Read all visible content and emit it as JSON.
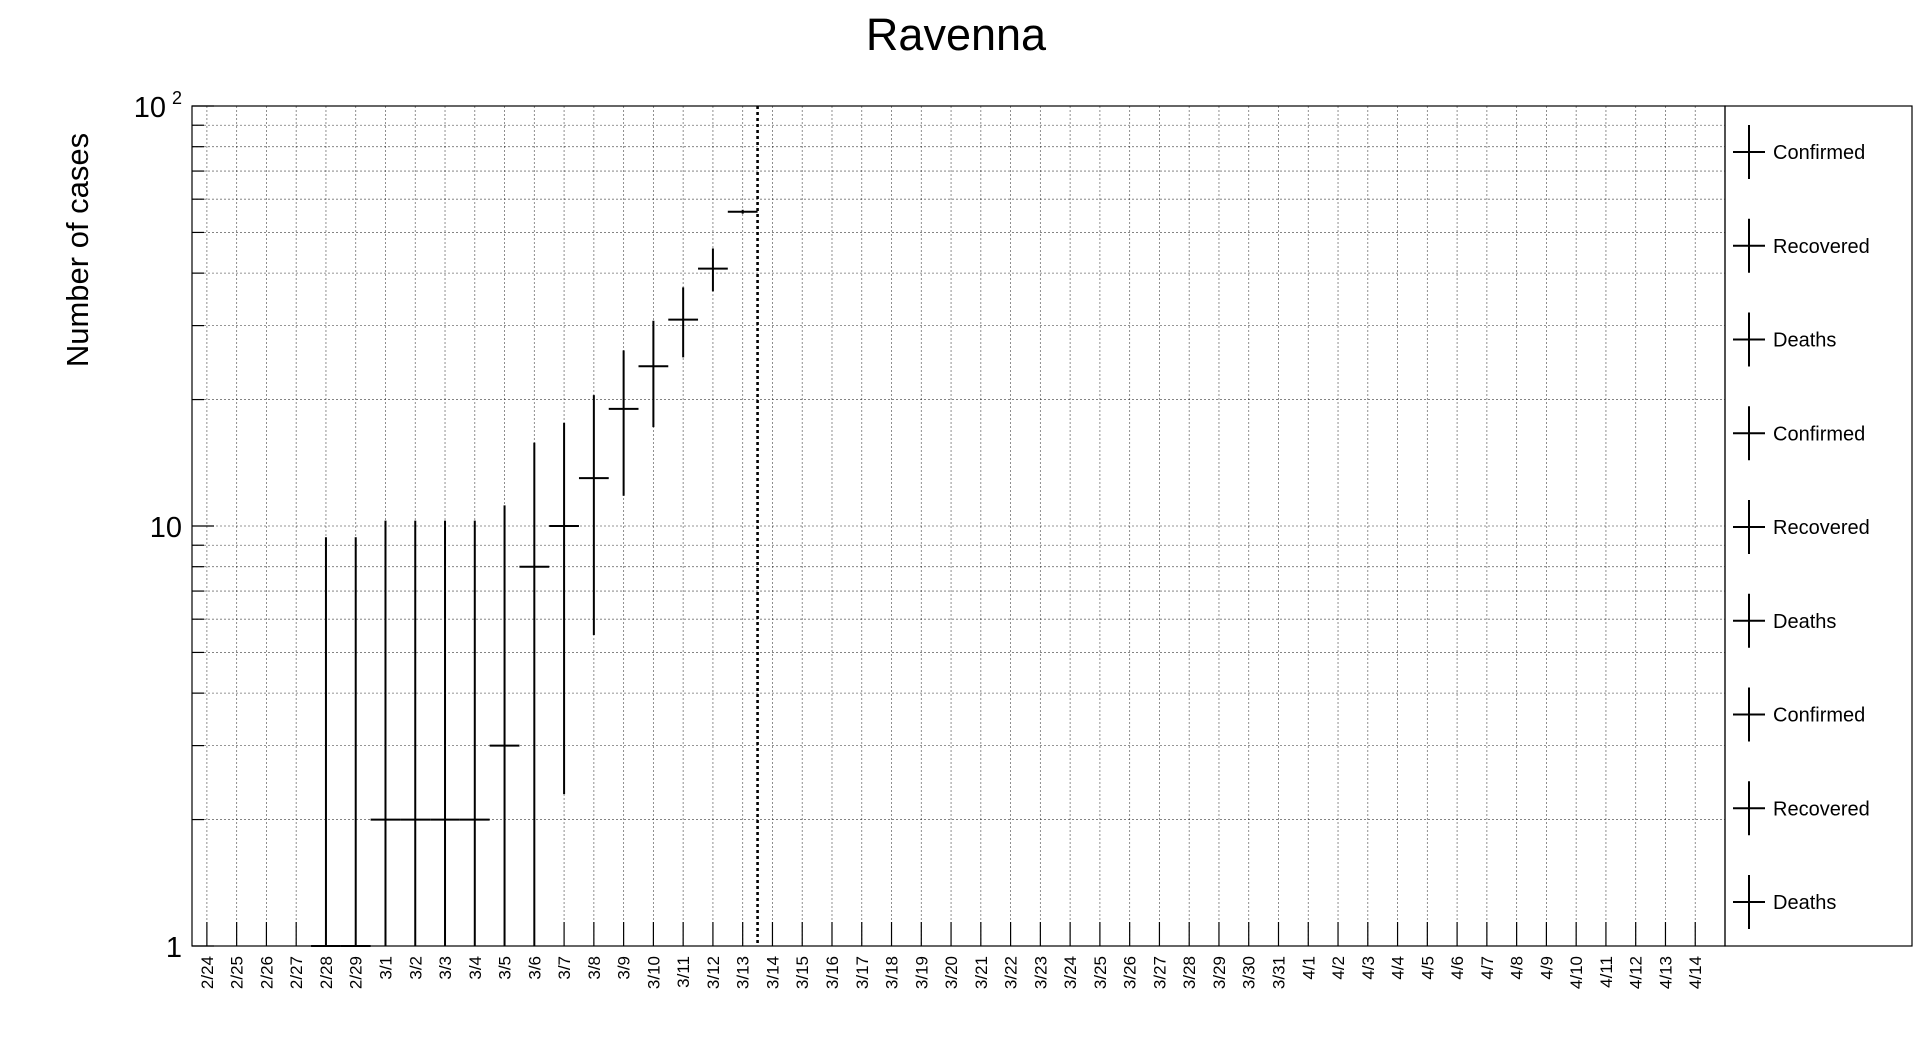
{
  "chart_data": {
    "type": "scatter",
    "title": "Ravenna",
    "xlabel": "",
    "ylabel": "Number of cases",
    "y_scale": "log",
    "ylim": [
      1,
      100
    ],
    "y_tick_labels": [
      {
        "value": 1,
        "label": "1"
      },
      {
        "value": 10,
        "label": "10"
      },
      {
        "value": 100,
        "label": "10",
        "exponent": "2"
      }
    ],
    "grid": true,
    "categories": [
      "2/24",
      "2/25",
      "2/26",
      "2/27",
      "2/28",
      "2/29",
      "3/1",
      "3/2",
      "3/3",
      "3/4",
      "3/5",
      "3/6",
      "3/7",
      "3/8",
      "3/9",
      "3/10",
      "3/11",
      "3/12",
      "3/13",
      "3/14",
      "3/15",
      "3/16",
      "3/17",
      "3/18",
      "3/19",
      "3/20",
      "3/21",
      "3/22",
      "3/23",
      "3/24",
      "3/25",
      "3/26",
      "3/27",
      "3/28",
      "3/29",
      "3/30",
      "3/31",
      "4/1",
      "4/2",
      "4/3",
      "4/4",
      "4/5",
      "4/6",
      "4/7",
      "4/8",
      "4/9",
      "4/10",
      "4/11",
      "4/12",
      "4/13",
      "4/14"
    ],
    "series": [
      {
        "name": "Confirmed",
        "points": [
          {
            "x": "2/28",
            "y": 1,
            "err_low": 0,
            "err_high": 9.4
          },
          {
            "x": "2/29",
            "y": 1,
            "err_low": 0,
            "err_high": 9.4
          },
          {
            "x": "3/1",
            "y": 2,
            "err_low": 1,
            "err_high": 10.3
          },
          {
            "x": "3/2",
            "y": 2,
            "err_low": 1,
            "err_high": 10.3
          },
          {
            "x": "3/3",
            "y": 2,
            "err_low": 1,
            "err_high": 10.3
          },
          {
            "x": "3/4",
            "y": 2,
            "err_low": 1,
            "err_high": 10.3
          },
          {
            "x": "3/5",
            "y": 3,
            "err_low": 1,
            "err_high": 11.2
          },
          {
            "x": "3/6",
            "y": 8,
            "err_low": 1,
            "err_high": 15.8
          },
          {
            "x": "3/7",
            "y": 10,
            "err_low": 2.3,
            "err_high": 17.6
          },
          {
            "x": "3/8",
            "y": 13,
            "err_low": 5.5,
            "err_high": 20.5
          },
          {
            "x": "3/9",
            "y": 19,
            "err_low": 11.8,
            "err_high": 26.2
          },
          {
            "x": "3/10",
            "y": 24,
            "err_low": 17.2,
            "err_high": 30.8
          },
          {
            "x": "3/11",
            "y": 31,
            "err_low": 25.2,
            "err_high": 37
          },
          {
            "x": "3/12",
            "y": 41,
            "err_low": 36.2,
            "err_high": 45.8
          },
          {
            "x": "3/13",
            "y": 56,
            "err_low": 55.4,
            "err_high": 56.6
          }
        ]
      }
    ],
    "vertical_marker": {
      "x": "3/13",
      "style": "dotted"
    },
    "legend": {
      "placement": "right",
      "entries": [
        "Confirmed",
        "Recovered",
        "Deaths",
        "Confirmed",
        "Recovered",
        "Deaths",
        "Confirmed",
        "Recovered",
        "Deaths"
      ]
    }
  }
}
